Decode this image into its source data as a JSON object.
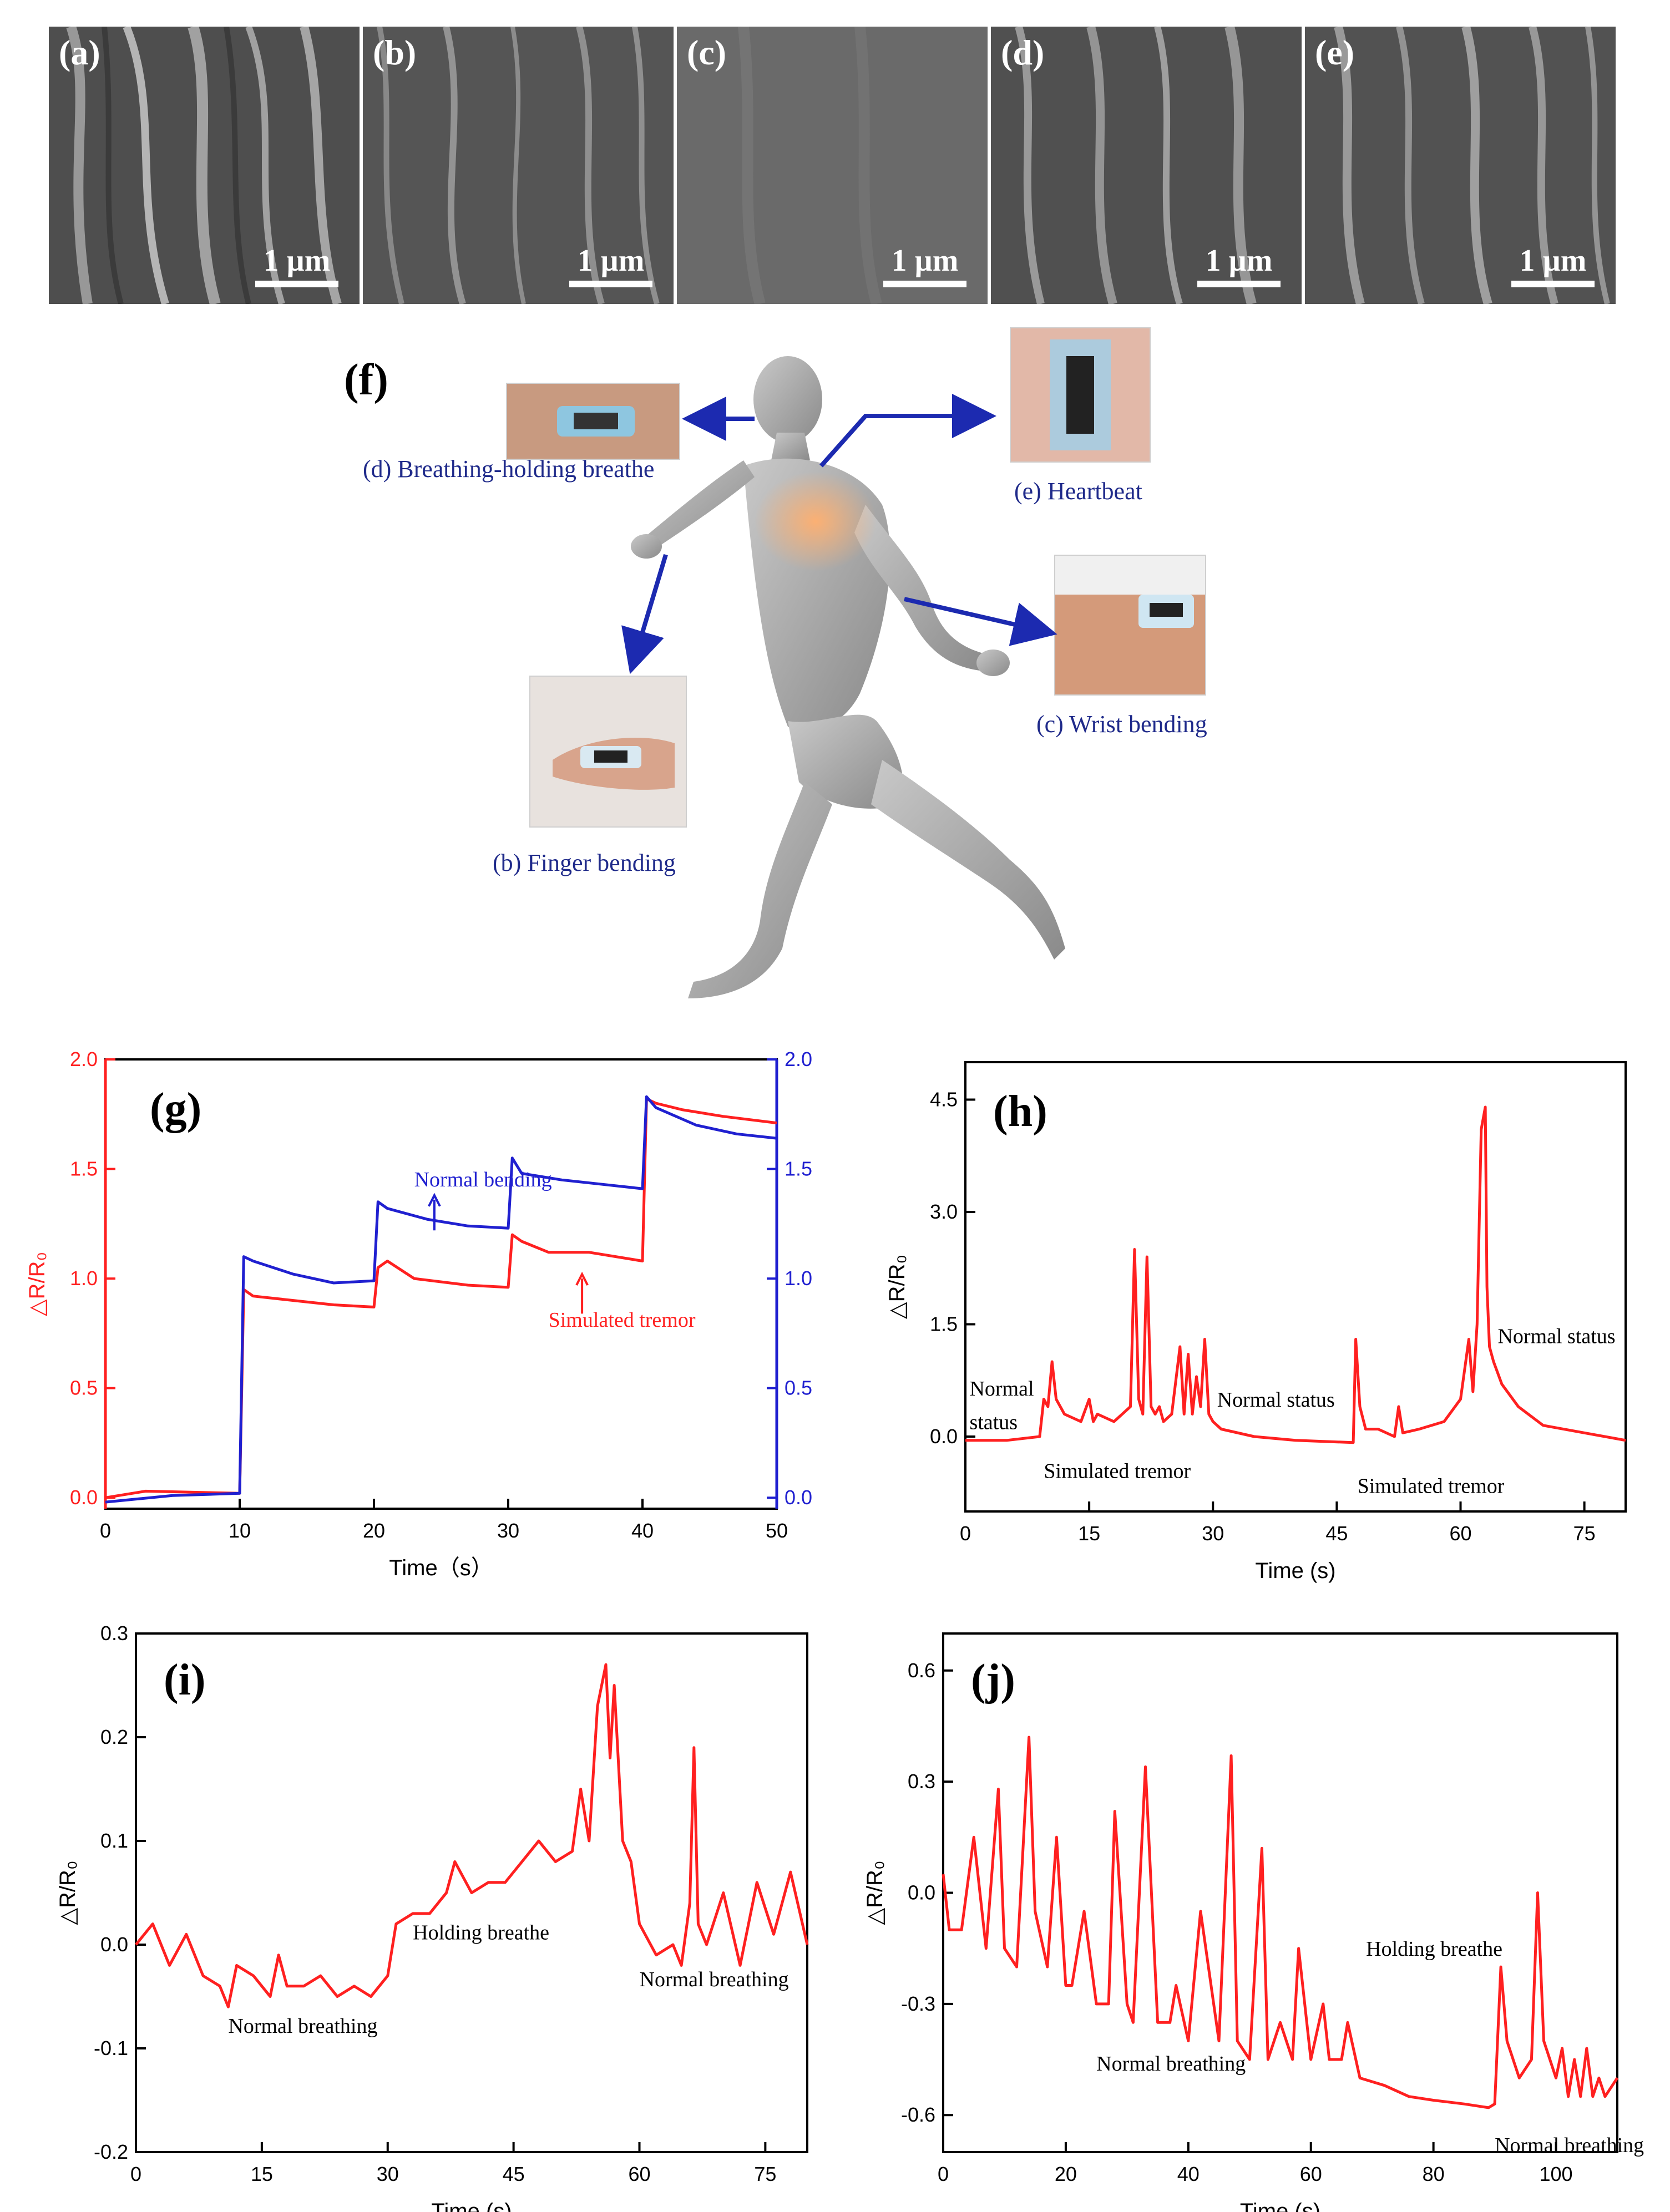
{
  "sem_panels": [
    {
      "label": "(a)",
      "scale": "1 µm"
    },
    {
      "label": "(b)",
      "scale": "1 µm"
    },
    {
      "label": "(c)",
      "scale": "1 µm"
    },
    {
      "label": "(d)",
      "scale": "1 µm"
    },
    {
      "label": "(e)",
      "scale": "1 µm"
    }
  ],
  "illustration": {
    "label": "(f)",
    "captions": {
      "breathing": "(d) Breathing-holding  breathe",
      "heartbeat": "(e) Heartbeat",
      "wrist": "(c) Wrist bending",
      "finger": "(b) Finger bending"
    }
  },
  "chart_data": [
    {
      "panel": "(g)",
      "type": "line",
      "xlabel": "Time（s）",
      "ylabel": "△R/R₀",
      "ylabel_right": "△R/R₀",
      "xlim": [
        0,
        50
      ],
      "ylim": [
        -0.05,
        2.0
      ],
      "ylim_right": [
        -0.05,
        2.0
      ],
      "xticks": [
        0,
        10,
        20,
        30,
        40,
        50
      ],
      "yticks": [
        0.0,
        0.5,
        1.0,
        1.5,
        2.0
      ],
      "axis_colors": {
        "left": "#ff2020",
        "right": "#2020d0"
      },
      "series": [
        {
          "color": "#ff2020",
          "x": [
            0,
            3,
            10,
            10.3,
            11,
            14,
            17,
            20,
            20.3,
            21,
            23,
            27,
            30,
            30.3,
            31,
            33,
            36,
            40,
            40.3,
            41,
            43,
            46,
            50
          ],
          "y": [
            0.0,
            0.03,
            0.02,
            0.95,
            0.92,
            0.9,
            0.88,
            0.87,
            1.05,
            1.08,
            1.0,
            0.97,
            0.96,
            1.2,
            1.17,
            1.12,
            1.12,
            1.08,
            1.82,
            1.8,
            1.77,
            1.74,
            1.71
          ]
        },
        {
          "color": "#2020d0",
          "x": [
            0,
            5,
            10,
            10.3,
            11,
            14,
            17,
            20,
            20.3,
            21,
            24,
            27,
            30,
            30.3,
            31,
            34,
            37,
            40,
            40.3,
            41,
            44,
            47,
            50
          ],
          "y": [
            -0.02,
            0.01,
            0.02,
            1.1,
            1.08,
            1.02,
            0.98,
            0.99,
            1.35,
            1.32,
            1.27,
            1.24,
            1.23,
            1.55,
            1.48,
            1.45,
            1.43,
            1.41,
            1.83,
            1.78,
            1.7,
            1.66,
            1.64
          ]
        }
      ],
      "annotations": [
        {
          "text": "Normal bending",
          "x": 23,
          "y": 1.42,
          "color": "#2020d0"
        },
        {
          "text": "Simulated tremor",
          "x": 33,
          "y": 0.78,
          "color": "#ff2020"
        }
      ]
    },
    {
      "panel": "(h)",
      "type": "line",
      "xlabel": "Time (s)",
      "ylabel": "△R/R₀",
      "xlim": [
        0,
        80
      ],
      "ylim": [
        -1.0,
        5.0
      ],
      "xticks": [
        0,
        15,
        30,
        45,
        60,
        75
      ],
      "yticks": [
        0.0,
        1.5,
        3.0,
        4.5
      ],
      "series": [
        {
          "color": "#ff2020",
          "x": [
            0,
            5,
            9,
            9.5,
            10,
            10.5,
            11,
            12,
            14,
            15,
            15.5,
            16,
            18,
            20,
            20.5,
            21,
            21.5,
            22,
            22.5,
            23,
            23.5,
            24,
            25,
            26,
            26.5,
            27,
            27.5,
            28,
            28.5,
            29,
            29.5,
            30,
            31,
            35,
            40,
            47,
            47.3,
            47.8,
            48.5,
            50,
            52,
            52.5,
            53,
            55,
            58,
            60,
            61,
            61.5,
            62,
            62.5,
            63,
            63.2,
            63.5,
            64,
            65,
            67,
            70,
            75,
            80
          ],
          "y": [
            -0.05,
            -0.05,
            0.0,
            0.5,
            0.4,
            1.0,
            0.5,
            0.3,
            0.2,
            0.5,
            0.2,
            0.3,
            0.2,
            0.4,
            2.5,
            0.5,
            0.3,
            2.4,
            0.4,
            0.3,
            0.4,
            0.2,
            0.3,
            1.2,
            0.3,
            1.1,
            0.3,
            0.8,
            0.4,
            1.3,
            0.3,
            0.2,
            0.1,
            0.0,
            -0.05,
            -0.08,
            1.3,
            0.4,
            0.1,
            0.1,
            0.0,
            0.4,
            0.05,
            0.1,
            0.2,
            0.5,
            1.3,
            0.6,
            1.5,
            4.1,
            4.4,
            2.0,
            1.2,
            1.0,
            0.7,
            0.4,
            0.15,
            0.05,
            -0.05
          ]
        }
      ],
      "annotations": [
        {
          "text": "Normal",
          "x": 0.5,
          "y": 0.55
        },
        {
          "text": "status",
          "x": 0.5,
          "y": 0.1
        },
        {
          "text": "Simulated tremor",
          "x": 9.5,
          "y": -0.55
        },
        {
          "text": "Normal status",
          "x": 30.5,
          "y": 0.4
        },
        {
          "text": "Simulated tremor",
          "x": 47.5,
          "y": -0.75
        },
        {
          "text": "Normal status",
          "x": 64.5,
          "y": 1.25
        }
      ]
    },
    {
      "panel": "(i)",
      "type": "line",
      "xlabel": "Time (s)",
      "ylabel": "△R/R₀",
      "xlim": [
        0,
        80
      ],
      "ylim": [
        -0.2,
        0.3
      ],
      "xticks": [
        0,
        15,
        30,
        45,
        60,
        75
      ],
      "yticks": [
        -0.2,
        -0.1,
        0.0,
        0.1,
        0.2,
        0.3
      ],
      "series": [
        {
          "color": "#ff2020",
          "x": [
            0,
            2,
            4,
            6,
            8,
            10,
            11,
            12,
            14,
            16,
            17,
            18,
            20,
            22,
            24,
            26,
            28,
            30,
            31,
            33,
            35,
            37,
            38,
            40,
            42,
            44,
            46,
            48,
            50,
            52,
            53,
            54,
            55,
            56,
            56.5,
            57,
            58,
            59,
            60,
            62,
            64,
            65,
            66,
            66.5,
            67,
            68,
            70,
            72,
            74,
            76,
            78,
            80
          ],
          "y": [
            0.0,
            0.02,
            -0.02,
            0.01,
            -0.03,
            -0.04,
            -0.06,
            -0.02,
            -0.03,
            -0.05,
            -0.01,
            -0.04,
            -0.04,
            -0.03,
            -0.05,
            -0.04,
            -0.05,
            -0.03,
            0.02,
            0.03,
            0.03,
            0.05,
            0.08,
            0.05,
            0.06,
            0.06,
            0.08,
            0.1,
            0.08,
            0.09,
            0.15,
            0.1,
            0.23,
            0.27,
            0.18,
            0.25,
            0.1,
            0.08,
            0.02,
            -0.01,
            0.0,
            -0.02,
            0.04,
            0.19,
            0.02,
            0.0,
            0.05,
            -0.02,
            0.06,
            0.01,
            0.07,
            0.0
          ]
        }
      ],
      "annotations": [
        {
          "text": "Normal breathing",
          "x": 11,
          "y": -0.085
        },
        {
          "text": "Holding breathe",
          "x": 33,
          "y": 0.005
        },
        {
          "text": "Normal breathing",
          "x": 60,
          "y": -0.04
        }
      ]
    },
    {
      "panel": "(j)",
      "type": "line",
      "xlabel": "Time (s)",
      "ylabel": "△R/R₀",
      "xlim": [
        0,
        110
      ],
      "ylim": [
        -0.7,
        0.7
      ],
      "xticks": [
        0,
        20,
        40,
        60,
        80,
        100
      ],
      "yticks": [
        -0.6,
        -0.3,
        0.0,
        0.3,
        0.6
      ],
      "series": [
        {
          "color": "#ff2020",
          "x": [
            0,
            1,
            3,
            5,
            7,
            9,
            10,
            12,
            14,
            15,
            17,
            18.5,
            20,
            21,
            23,
            25,
            27,
            28,
            30,
            31,
            33,
            35,
            37,
            38,
            40,
            42,
            45,
            47,
            48,
            50,
            52,
            53,
            55,
            57,
            58,
            60,
            62,
            63,
            65,
            66,
            68,
            72,
            76,
            80,
            85,
            89,
            90,
            91,
            92,
            94,
            96,
            97,
            98,
            100,
            101,
            102,
            103,
            104,
            105,
            106,
            107,
            108,
            110
          ],
          "y": [
            0.05,
            -0.1,
            -0.1,
            0.15,
            -0.15,
            0.28,
            -0.15,
            -0.2,
            0.42,
            -0.05,
            -0.2,
            0.15,
            -0.25,
            -0.25,
            -0.05,
            -0.3,
            -0.3,
            0.22,
            -0.3,
            -0.35,
            0.34,
            -0.35,
            -0.35,
            -0.25,
            -0.4,
            -0.05,
            -0.4,
            0.37,
            -0.4,
            -0.45,
            0.12,
            -0.45,
            -0.35,
            -0.45,
            -0.15,
            -0.45,
            -0.3,
            -0.45,
            -0.45,
            -0.35,
            -0.5,
            -0.52,
            -0.55,
            -0.56,
            -0.57,
            -0.58,
            -0.57,
            -0.2,
            -0.4,
            -0.5,
            -0.45,
            0.0,
            -0.4,
            -0.5,
            -0.42,
            -0.55,
            -0.45,
            -0.55,
            -0.42,
            -0.55,
            -0.5,
            -0.55,
            -0.5
          ]
        }
      ],
      "annotations": [
        {
          "text": "Normal breathing",
          "x": 25,
          "y": -0.48
        },
        {
          "text": "Holding breathe",
          "x": 69,
          "y": -0.17
        },
        {
          "text": "Normal breathing",
          "x": 90,
          "y": -0.7
        }
      ]
    }
  ]
}
